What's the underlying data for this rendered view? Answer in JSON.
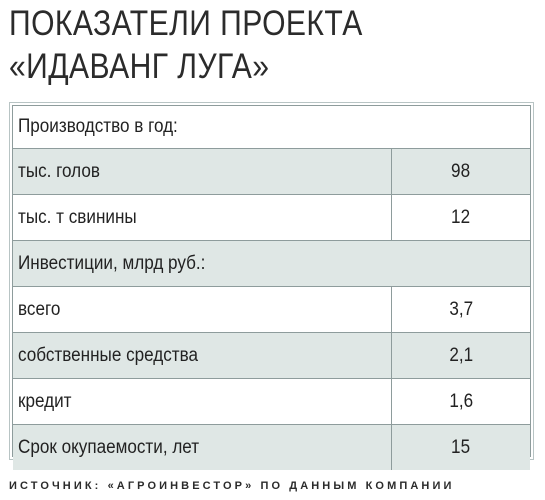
{
  "title": {
    "line1": "ПОКАЗАТЕЛИ ПРОЕКТА",
    "line2": "«ИДАВАНГ ЛУГА»"
  },
  "table": {
    "rows": [
      {
        "label": "Производство в год:",
        "value": "",
        "shaded": false,
        "header": true
      },
      {
        "label": "тыс. голов",
        "value": "98",
        "shaded": true,
        "header": false
      },
      {
        "label": "тыс. т свинины",
        "value": "12",
        "shaded": false,
        "header": false
      },
      {
        "label": "Инвестиции, млрд руб.:",
        "value": "",
        "shaded": true,
        "header": true
      },
      {
        "label": "всего",
        "value": "3,7",
        "shaded": false,
        "header": false
      },
      {
        "label": "собственные средства",
        "value": "2,1",
        "shaded": true,
        "header": false
      },
      {
        "label": "кредит",
        "value": "1,6",
        "shaded": false,
        "header": false
      },
      {
        "label": "Срок окупаемости, лет",
        "value": "15",
        "shaded": true,
        "header": false
      }
    ]
  },
  "source": "ИСТОЧНИК: «АГРОИНВЕСТОР» ПО ДАННЫМ КОМПАНИИ",
  "colors": {
    "shaded_row": "#dfe7e5",
    "border": "#8e9c9c",
    "text": "#222222"
  }
}
